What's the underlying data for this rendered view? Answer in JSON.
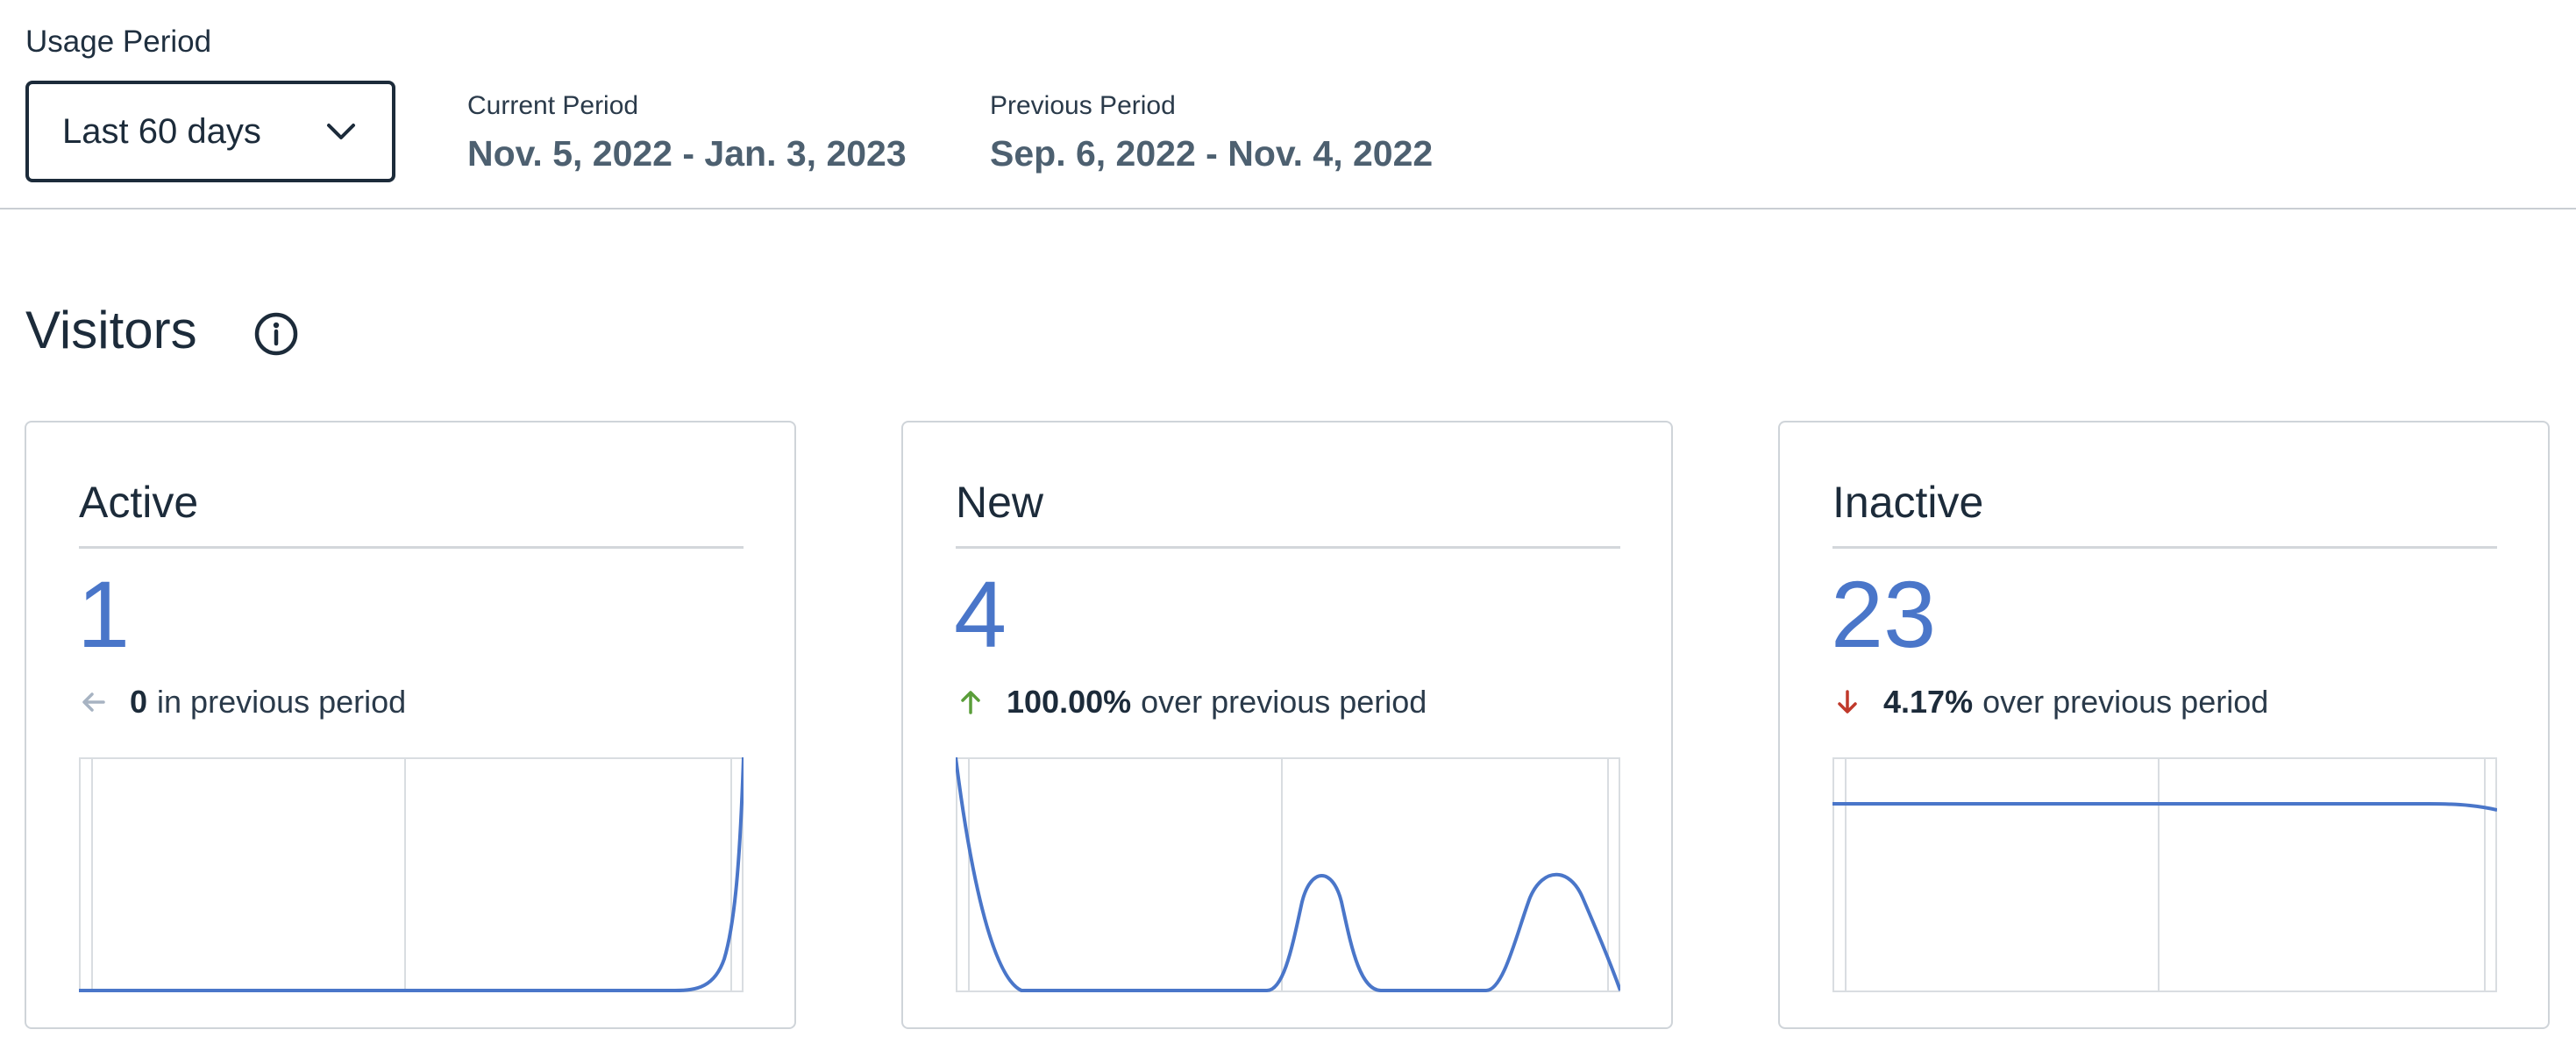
{
  "usage_period": {
    "label": "Usage Period",
    "selected": "Last 60 days",
    "current_label": "Current Period",
    "current_range": "Nov. 5, 2022 - Jan. 3, 2023",
    "previous_label": "Previous Period",
    "previous_range": "Sep. 6, 2022 - Nov. 4, 2022"
  },
  "visitors": {
    "title": "Visitors",
    "info_icon": "info-icon",
    "cards": [
      {
        "title": "Active",
        "value": "1",
        "trend_num": "0",
        "trend_text": "in previous period",
        "trend_direction": "neutral",
        "trend_color": "#a7b3c2"
      },
      {
        "title": "New",
        "value": "4",
        "trend_num": "100.00%",
        "trend_text": "over previous period",
        "trend_direction": "up",
        "trend_color": "#5a9e3a"
      },
      {
        "title": "Inactive",
        "value": "23",
        "trend_num": "4.17%",
        "trend_text": "over previous period",
        "trend_direction": "down",
        "trend_color": "#c0392b"
      }
    ]
  },
  "colors": {
    "accent": "#4a76c9",
    "grid": "#d9dde1"
  }
}
